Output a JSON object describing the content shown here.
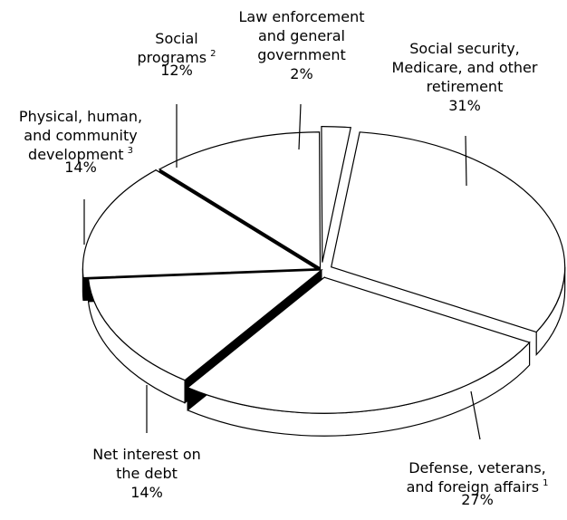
{
  "chart_data": {
    "type": "pie",
    "style": "3d-exploded",
    "colors": {
      "face": "#ffffff",
      "edge": "#000000",
      "gap": "#000000"
    },
    "slices": [
      {
        "lines": [
          "Social security,",
          "Medicare, and other",
          "retirement"
        ],
        "value": 31,
        "value_label": "31%",
        "footnote": ""
      },
      {
        "lines": [
          "Defense, veterans,",
          "and foreign affairs"
        ],
        "value": 27,
        "value_label": "27%",
        "footnote": "1"
      },
      {
        "lines": [
          "Net interest on",
          "the debt"
        ],
        "value": 14,
        "value_label": "14%",
        "footnote": ""
      },
      {
        "lines": [
          "Physical, human,",
          "and community",
          "development"
        ],
        "value": 14,
        "value_label": "14%",
        "footnote": "3"
      },
      {
        "lines": [
          "Social",
          "programs"
        ],
        "value": 12,
        "value_label": "12%",
        "footnote": "2"
      },
      {
        "lines": [
          "Law enforcement",
          "and general",
          "government"
        ],
        "value": 2,
        "value_label": "2%",
        "footnote": ""
      }
    ]
  }
}
